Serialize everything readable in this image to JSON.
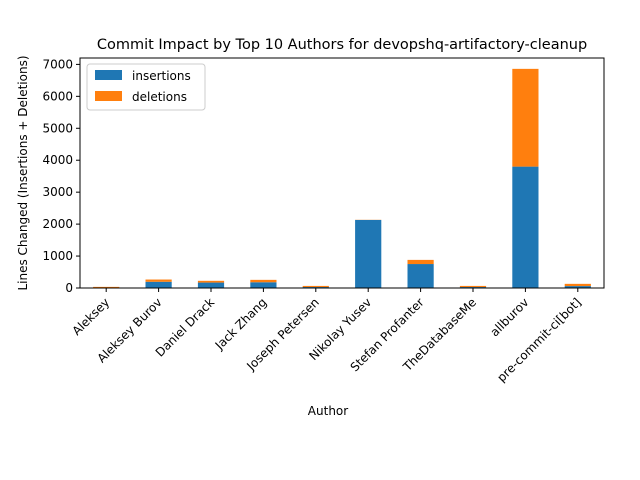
{
  "chart_data": {
    "type": "bar",
    "stacked": true,
    "title": "Commit Impact by Top 10 Authors for devopshq-artifactory-cleanup",
    "xlabel": "Author",
    "ylabel": "Lines Changed (Insertions + Deletions)",
    "ylim": [
      0,
      7200
    ],
    "yticks": [
      0,
      1000,
      2000,
      3000,
      4000,
      5000,
      6000,
      7000
    ],
    "grid": false,
    "legend_position": "top-left",
    "categories": [
      "Aleksey",
      "Aleksey Burov",
      "Daniel Drack",
      "Jack Zhang",
      "Joseph Petersen",
      "Nikolay Yusev",
      "Stefan Profanter",
      "TheDatabaseMe",
      "allburov",
      "pre-commit-ci[bot]"
    ],
    "series": [
      {
        "name": "insertions",
        "color": "#1f77b4",
        "values": [
          15,
          195,
          170,
          180,
          30,
          2130,
          750,
          30,
          3800,
          60
        ]
      },
      {
        "name": "deletions",
        "color": "#ff7f0e",
        "values": [
          20,
          70,
          55,
          75,
          35,
          5,
          130,
          35,
          3060,
          70
        ]
      }
    ]
  }
}
